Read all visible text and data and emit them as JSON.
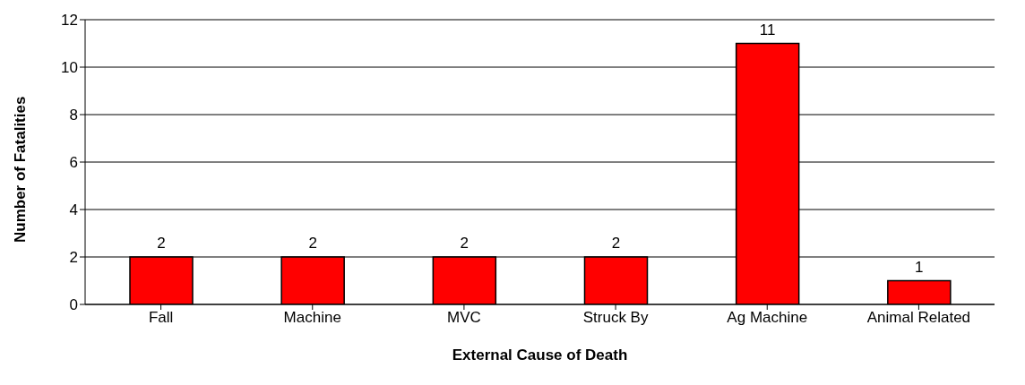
{
  "chart_data": {
    "type": "bar",
    "xlabel": "External Cause of Death",
    "ylabel": "Number of Fatalities",
    "categories": [
      "Fall",
      "Machine",
      "MVC",
      "Struck By",
      "Ag Machine",
      "Animal Related"
    ],
    "values": [
      2,
      2,
      2,
      2,
      11,
      1
    ],
    "color": "#ff0000",
    "ylim": [
      0,
      12
    ],
    "yticks": [
      0,
      2,
      4,
      6,
      8,
      10,
      12
    ],
    "grid": "y",
    "data_labels": true
  }
}
